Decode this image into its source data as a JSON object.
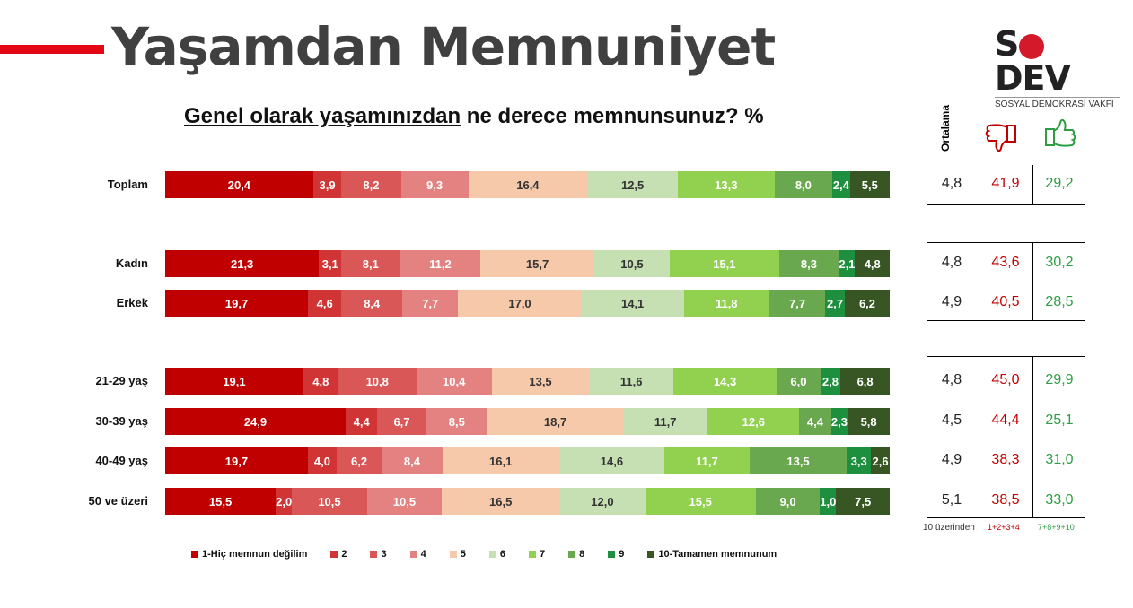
{
  "header": {
    "title": "Yaşamdan Memnuniyet",
    "logo_text": "SODEV",
    "logo_subtitle": "SOSYAL DEMOKRASİ VAKFI"
  },
  "chart_data": {
    "type": "bar",
    "orientation": "horizontal",
    "stacked": true,
    "title_underlined": "Genel olarak yaşamınızdan",
    "title_rest": " ne derece memnunsunuz? %",
    "categories": [
      "Toplam",
      "Kadın",
      "Erkek",
      "21-29 yaş",
      "30-39 yaş",
      "40-49 yaş",
      "50 ve üzeri"
    ],
    "series": [
      {
        "name": "1-Hiç memnun değilim",
        "color": "#c00000",
        "values": [
          20.4,
          21.3,
          19.7,
          19.1,
          24.9,
          19.7,
          15.5
        ],
        "labels": [
          "20,4",
          "21,3",
          "19,7",
          "19,1",
          "24,9",
          "19,7",
          "15,5"
        ]
      },
      {
        "name": "2",
        "color": "#d03434",
        "values": [
          3.9,
          3.1,
          4.6,
          4.8,
          4.4,
          4.0,
          2.0
        ],
        "labels": [
          "3,9",
          "3,1",
          "4,6",
          "4,8",
          "4,4",
          "4,0",
          "2,0"
        ]
      },
      {
        "name": "3",
        "color": "#d95757",
        "values": [
          8.2,
          8.1,
          8.4,
          10.8,
          6.7,
          6.2,
          10.5
        ],
        "labels": [
          "8,2",
          "8,1",
          "8,4",
          "10,8",
          "6,7",
          "6,2",
          "10,5"
        ]
      },
      {
        "name": "4",
        "color": "#e48282",
        "values": [
          9.3,
          11.2,
          7.7,
          10.4,
          8.5,
          8.4,
          10.5
        ],
        "labels": [
          "9,3",
          "11,2",
          "7,7",
          "10,4",
          "8,5",
          "8,4",
          "10,5"
        ]
      },
      {
        "name": "5",
        "color": "#f6c9aa",
        "values": [
          16.4,
          15.7,
          17.0,
          13.5,
          18.7,
          16.1,
          16.5
        ],
        "labels": [
          "16,4",
          "15,7",
          "17,0",
          "13,5",
          "18,7",
          "16,1",
          "16,5"
        ]
      },
      {
        "name": "6",
        "color": "#c6e0b4",
        "values": [
          12.5,
          10.5,
          14.1,
          11.6,
          11.7,
          14.6,
          12.0
        ],
        "labels": [
          "12,5",
          "10,5",
          "14,1",
          "11,6",
          "11,7",
          "14,6",
          "12,0"
        ]
      },
      {
        "name": "7",
        "color": "#92d050",
        "values": [
          13.3,
          15.1,
          11.8,
          14.3,
          12.6,
          11.7,
          15.5
        ],
        "labels": [
          "13,3",
          "15,1",
          "11,8",
          "14,3",
          "12,6",
          "11,7",
          "15,5"
        ]
      },
      {
        "name": "8",
        "color": "#6aa84f",
        "values": [
          8.0,
          8.3,
          7.7,
          6.0,
          4.4,
          13.5,
          9.0
        ],
        "labels": [
          "8,0",
          "8,3",
          "7,7",
          "6,0",
          "4,4",
          "13,5",
          "9,0"
        ]
      },
      {
        "name": "9",
        "color": "#1e8f3e",
        "values": [
          2.4,
          2.1,
          2.7,
          2.8,
          2.3,
          3.3,
          1.0
        ],
        "labels": [
          "2,4",
          "2,1",
          "2,7",
          "2,8",
          "2,3",
          "3,3",
          "1,0"
        ]
      },
      {
        "name": "10-Tamamen memnunum",
        "color": "#375623",
        "values": [
          5.5,
          4.8,
          6.2,
          6.8,
          5.8,
          2.6,
          7.5
        ],
        "labels": [
          "5,5",
          "4,8",
          "6,2",
          "6,8",
          "5,8",
          "2,6",
          "7,5"
        ]
      }
    ],
    "legend_position": "bottom"
  },
  "summary": {
    "headers": {
      "avg": "Ortalama",
      "neg_icon": "thumbs-down",
      "pos_icon": "thumbs-up"
    },
    "rows": [
      {
        "avg": "4,8",
        "neg": "41,9",
        "pos": "29,2"
      },
      {
        "avg": "4,8",
        "neg": "43,6",
        "pos": "30,2"
      },
      {
        "avg": "4,9",
        "neg": "40,5",
        "pos": "28,5"
      },
      {
        "avg": "4,8",
        "neg": "45,0",
        "pos": "29,9"
      },
      {
        "avg": "4,5",
        "neg": "44,4",
        "pos": "25,1"
      },
      {
        "avg": "4,9",
        "neg": "38,3",
        "pos": "31,0"
      },
      {
        "avg": "5,1",
        "neg": "38,5",
        "pos": "33,0"
      }
    ],
    "footer": {
      "avg": "10 üzerinden",
      "neg": "1+2+3+4",
      "pos": "7+8+9+10"
    }
  },
  "colors": {
    "neg": "#c00000",
    "pos": "#2e9e44",
    "accent": "#e30613"
  }
}
